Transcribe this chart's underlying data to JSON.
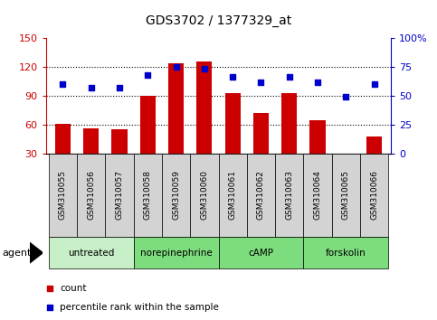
{
  "title": "GDS3702 / 1377329_at",
  "samples": [
    "GSM310055",
    "GSM310056",
    "GSM310057",
    "GSM310058",
    "GSM310059",
    "GSM310060",
    "GSM310061",
    "GSM310062",
    "GSM310063",
    "GSM310064",
    "GSM310065",
    "GSM310066"
  ],
  "counts": [
    61,
    56,
    55,
    90,
    124,
    126,
    93,
    72,
    93,
    65,
    29,
    48
  ],
  "percentiles": [
    60,
    57,
    57,
    68,
    75,
    74,
    67,
    62,
    67,
    62,
    49,
    60
  ],
  "agents": [
    {
      "label": "untreated",
      "start": 0,
      "end": 3,
      "color": "#c8f0c8"
    },
    {
      "label": "norepinephrine",
      "start": 3,
      "end": 6,
      "color": "#7ddc7d"
    },
    {
      "label": "cAMP",
      "start": 6,
      "end": 9,
      "color": "#7ddc7d"
    },
    {
      "label": "forskolin",
      "start": 9,
      "end": 12,
      "color": "#7ddc7d"
    }
  ],
  "ylim_left": [
    30,
    150
  ],
  "ylim_right": [
    0,
    100
  ],
  "yticks_left": [
    30,
    60,
    90,
    120,
    150
  ],
  "yticks_right": [
    0,
    25,
    50,
    75,
    100
  ],
  "bar_color": "#cc0000",
  "dot_color": "#0000cc",
  "sample_bg_color": "#d3d3d3",
  "grid_yticks": [
    60,
    90,
    120
  ]
}
